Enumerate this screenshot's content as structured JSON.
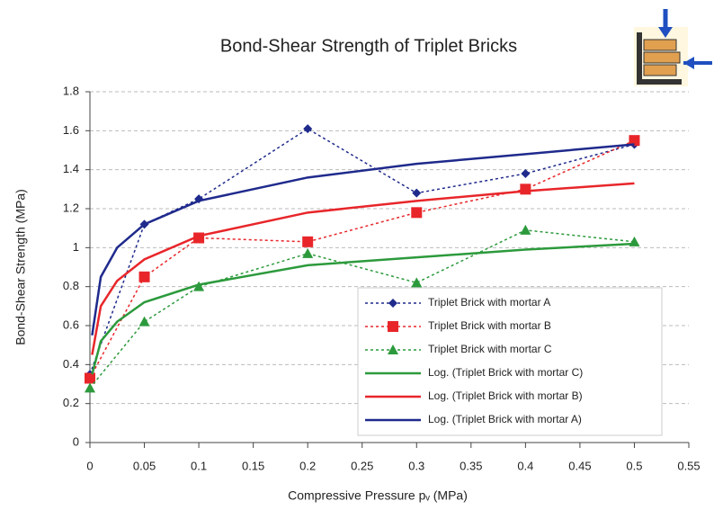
{
  "chart_data": {
    "type": "line",
    "title": "Bond-Shear Strength of Triplet Bricks",
    "x_label": "Compressive Pressure pᵥ (MPa)",
    "y_label": "Bond-Shear Strength (MPa)",
    "xlim": [
      0,
      0.55
    ],
    "xticks": [
      0,
      0.05,
      0.1,
      0.15,
      0.2,
      0.25,
      0.3,
      0.35,
      0.4,
      0.45,
      0.5,
      0.55
    ],
    "ylim": [
      0,
      1.8
    ],
    "yticks": [
      0,
      0.2,
      0.4,
      0.6,
      0.8,
      1,
      1.2,
      1.4,
      1.6,
      1.8
    ],
    "grid": true,
    "legend": "lower right",
    "series": [
      {
        "name": "Triplet Brick with mortar A",
        "color": "#1f2a8c",
        "marker": "diamond",
        "dashed": true,
        "x": [
          0,
          0.05,
          0.1,
          0.2,
          0.3,
          0.4,
          0.5
        ],
        "values": [
          0.35,
          1.12,
          1.25,
          1.61,
          1.28,
          1.38,
          1.53
        ]
      },
      {
        "name": "Triplet Brick with mortar B",
        "color": "#e8262a",
        "marker": "square",
        "dashed": true,
        "x": [
          0,
          0.05,
          0.1,
          0.2,
          0.3,
          0.4,
          0.5
        ],
        "values": [
          0.33,
          0.85,
          1.05,
          1.03,
          1.18,
          1.3,
          1.55
        ]
      },
      {
        "name": "Triplet Brick with mortar C",
        "color": "#2c9a3c",
        "marker": "triangle",
        "dashed": true,
        "x": [
          0,
          0.05,
          0.1,
          0.2,
          0.3,
          0.4,
          0.5
        ],
        "values": [
          0.28,
          0.62,
          0.8,
          0.97,
          0.82,
          1.09,
          1.03
        ]
      },
      {
        "name": "Log. (Triplet Brick with mortar C)",
        "color": "#2c9a3c",
        "marker": "none",
        "dashed": false,
        "x": [
          0.002,
          0.01,
          0.025,
          0.05,
          0.1,
          0.2,
          0.3,
          0.4,
          0.5
        ],
        "values": [
          0.35,
          0.52,
          0.62,
          0.72,
          0.81,
          0.91,
          0.95,
          0.99,
          1.02
        ]
      },
      {
        "name": "Log. (Triplet Brick with mortar B)",
        "color": "#e8262a",
        "marker": "none",
        "dashed": false,
        "x": [
          0.002,
          0.01,
          0.025,
          0.05,
          0.1,
          0.2,
          0.3,
          0.4,
          0.5
        ],
        "values": [
          0.45,
          0.7,
          0.83,
          0.94,
          1.06,
          1.18,
          1.24,
          1.29,
          1.33
        ]
      },
      {
        "name": "Log. (Triplet Brick with mortar A)",
        "color": "#1f2a8c",
        "marker": "none",
        "dashed": false,
        "x": [
          0.002,
          0.01,
          0.025,
          0.05,
          0.1,
          0.2,
          0.3,
          0.4,
          0.5
        ],
        "values": [
          0.55,
          0.85,
          1.0,
          1.12,
          1.24,
          1.36,
          1.43,
          1.48,
          1.53
        ]
      }
    ]
  }
}
